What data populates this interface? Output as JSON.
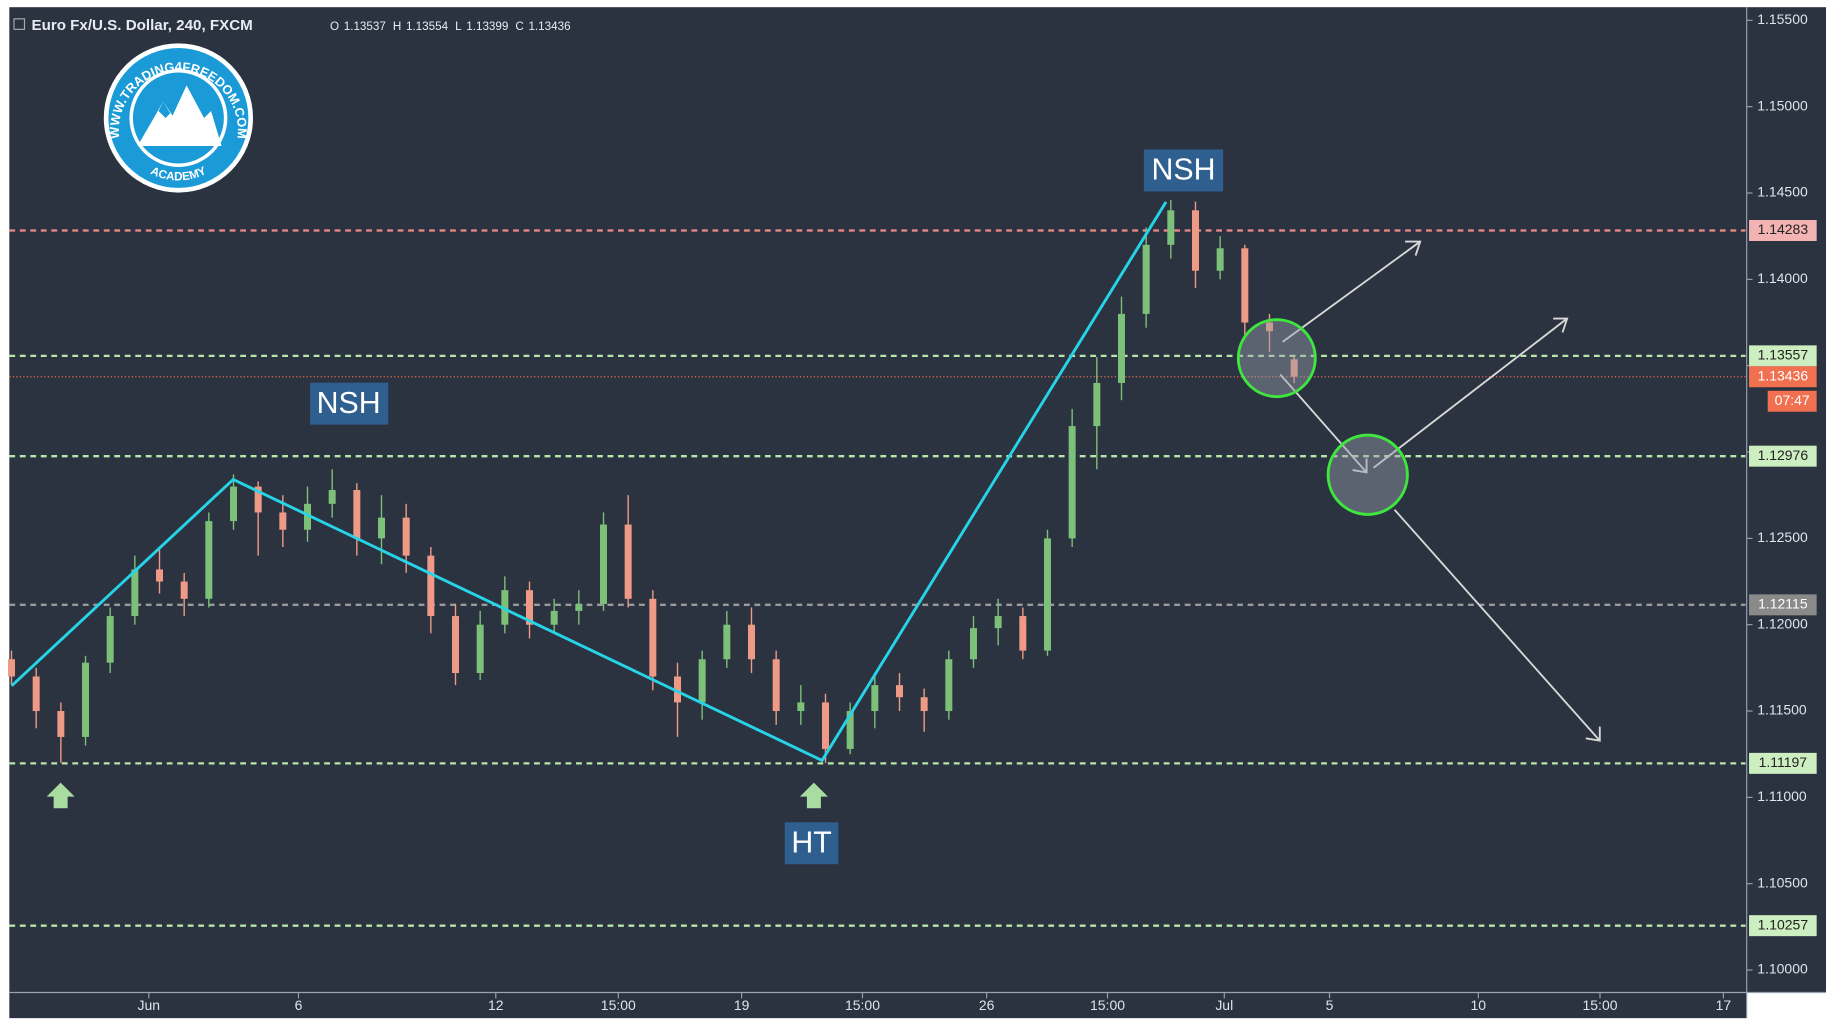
{
  "chart_data": {
    "type": "candlestick",
    "title": "Euro Fx/U.S. Dollar, 240, FXCM",
    "ohlc_legend": [
      {
        "label": "O",
        "value": 1.13537
      },
      {
        "label": "H",
        "value": 1.13554
      },
      {
        "label": "L",
        "value": 1.13399
      },
      {
        "label": "C",
        "value": 1.13436
      }
    ],
    "up_color": "#7cc07a",
    "down_color": "#ee9a86",
    "x": [
      0,
      3,
      6,
      9,
      12,
      15,
      18,
      21,
      24,
      27,
      30,
      33,
      36,
      39,
      42,
      45,
      48,
      51,
      54,
      57,
      60,
      63,
      66,
      69,
      72,
      75,
      78,
      81,
      84,
      87,
      90,
      93,
      96,
      99,
      102,
      105,
      108,
      111,
      114,
      117,
      120,
      123,
      126,
      129,
      132,
      135,
      138,
      141,
      144,
      147,
      150,
      153,
      156
    ],
    "open": [
      1.118,
      1.117,
      1.115,
      1.1135,
      1.1178,
      1.1205,
      1.1232,
      1.1225,
      1.1215,
      1.126,
      1.128,
      1.1265,
      1.1255,
      1.127,
      1.1278,
      1.125,
      1.1262,
      1.124,
      1.1205,
      1.1172,
      1.12,
      1.122,
      1.12,
      1.1208,
      1.1212,
      1.1258,
      1.1215,
      1.117,
      1.1155,
      1.118,
      1.12,
      1.118,
      1.115,
      1.1155,
      1.1128,
      1.115,
      1.1165,
      1.1158,
      1.115,
      1.118,
      1.1198,
      1.1205,
      1.1185,
      1.125,
      1.1315,
      1.134,
      1.138,
      1.142,
      1.144,
      1.1405,
      1.1418,
      1.1375,
      1.13537
    ],
    "high": [
      1.1185,
      1.1175,
      1.1155,
      1.1182,
      1.121,
      1.124,
      1.1245,
      1.123,
      1.1265,
      1.1287,
      1.1283,
      1.1275,
      1.128,
      1.129,
      1.1282,
      1.1275,
      1.127,
      1.1245,
      1.1212,
      1.1208,
      1.1228,
      1.1225,
      1.1215,
      1.122,
      1.1265,
      1.1275,
      1.122,
      1.1178,
      1.1185,
      1.1208,
      1.121,
      1.1185,
      1.1165,
      1.116,
      1.1155,
      1.1172,
      1.1172,
      1.1163,
      1.1185,
      1.1205,
      1.1215,
      1.121,
      1.1255,
      1.1325,
      1.1355,
      1.139,
      1.143,
      1.1446,
      1.1445,
      1.1425,
      1.142,
      1.138,
      1.13554
    ],
    "low": [
      1.1165,
      1.114,
      1.112,
      1.113,
      1.1172,
      1.12,
      1.1218,
      1.1205,
      1.121,
      1.1255,
      1.124,
      1.1245,
      1.1248,
      1.1262,
      1.124,
      1.1235,
      1.123,
      1.1195,
      1.1165,
      1.1168,
      1.1195,
      1.1192,
      1.1195,
      1.12,
      1.1208,
      1.121,
      1.1162,
      1.1135,
      1.1145,
      1.1175,
      1.1172,
      1.1142,
      1.1142,
      1.112,
      1.1125,
      1.114,
      1.115,
      1.1138,
      1.1145,
      1.1175,
      1.1188,
      1.118,
      1.1182,
      1.1245,
      1.129,
      1.133,
      1.1372,
      1.1412,
      1.1395,
      1.14,
      1.1368,
      1.1358,
      1.13399
    ],
    "close": [
      1.117,
      1.115,
      1.1135,
      1.1178,
      1.1205,
      1.1232,
      1.1225,
      1.1215,
      1.126,
      1.128,
      1.1265,
      1.1255,
      1.127,
      1.1278,
      1.125,
      1.1262,
      1.124,
      1.1205,
      1.1172,
      1.12,
      1.122,
      1.12,
      1.1208,
      1.1212,
      1.1258,
      1.1215,
      1.117,
      1.1155,
      1.118,
      1.12,
      1.118,
      1.115,
      1.1155,
      1.1128,
      1.115,
      1.1165,
      1.1158,
      1.115,
      1.118,
      1.1198,
      1.1205,
      1.1185,
      1.125,
      1.1315,
      1.134,
      1.138,
      1.142,
      1.144,
      1.1405,
      1.1418,
      1.1375,
      1.137,
      1.13436
    ],
    "xlim": [
      -1.4,
      210.9
    ],
    "xticks": [
      {
        "value": 16.7,
        "label": "Jun"
      },
      {
        "value": 34.9,
        "label": "6"
      },
      {
        "value": 58.9,
        "label": "12"
      },
      {
        "value": 73.8,
        "label": "15:00"
      },
      {
        "value": 88.8,
        "label": "19"
      },
      {
        "value": 103.5,
        "label": "15:00"
      },
      {
        "value": 118.6,
        "label": "26"
      },
      {
        "value": 133.3,
        "label": "15:00"
      },
      {
        "value": 147.5,
        "label": "Jul"
      },
      {
        "value": 160.3,
        "label": "5"
      },
      {
        "value": 178.4,
        "label": "10"
      },
      {
        "value": 193.2,
        "label": "15:00"
      },
      {
        "value": 208.2,
        "label": "17"
      }
    ],
    "ylim": [
      1.0987,
      1.1561
    ],
    "yticks": [
      {
        "value": 1.155,
        "label": "1.15500"
      },
      {
        "value": 1.15,
        "label": "1.15000"
      },
      {
        "value": 1.145,
        "label": "1.14500"
      },
      {
        "value": 1.14,
        "label": "1.14000"
      },
      {
        "value": 1.135,
        "label": "1.13500"
      },
      {
        "value": 1.13,
        "label": "1.13000"
      },
      {
        "value": 1.125,
        "label": "1.12500"
      },
      {
        "value": 1.12,
        "label": "1.12000"
      },
      {
        "value": 1.115,
        "label": "1.11500"
      },
      {
        "value": 1.11,
        "label": "1.11000"
      },
      {
        "value": 1.105,
        "label": "1.10500"
      },
      {
        "value": 1.1,
        "label": "1.10000"
      }
    ],
    "levels": [
      {
        "value": 1.14283,
        "color": "#f08a8a",
        "label_bg": "#f4b3b3",
        "label_color": "#222"
      },
      {
        "value": 1.13557,
        "color": "#b8e6a8",
        "label_bg": "#cdeec0",
        "label_color": "#222"
      },
      {
        "value": 1.12976,
        "color": "#b8e6a8",
        "label_bg": "#cdeec0",
        "label_color": "#222"
      },
      {
        "value": 1.12115,
        "color": "#9a9a9a",
        "label_bg": "#8a8a8a",
        "label_color": "#fff"
      },
      {
        "value": 1.11197,
        "color": "#b8e6a8",
        "label_bg": "#cdeec0",
        "label_color": "#222"
      },
      {
        "value": 1.10257,
        "color": "#b8e6a8",
        "label_bg": "#cdeec0",
        "label_color": "#222"
      }
    ],
    "last_price": {
      "value": 1.13436,
      "color": "#f0704f",
      "countdown": "07:47"
    },
    "annotations": [
      "NSH",
      "NSH",
      "HT"
    ],
    "logo": {
      "text": "WWW.TRADING4FREEDOM.COM",
      "sub": "ACADEMY"
    }
  }
}
